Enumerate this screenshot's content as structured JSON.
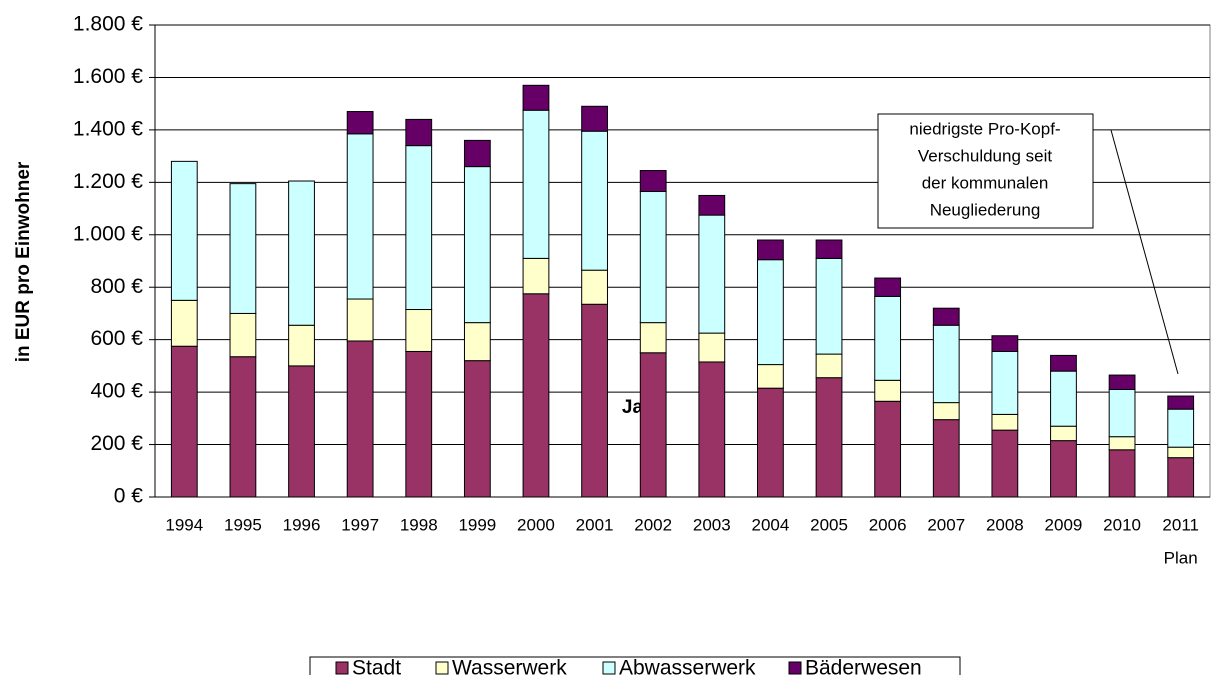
{
  "chart_data": {
    "type": "stacked_bar",
    "y_label": "in EUR pro Einwohner",
    "x_label": "Jahr",
    "categories": [
      "1994",
      "1995",
      "1996",
      "1997",
      "1998",
      "1999",
      "2000",
      "2001",
      "2002",
      "2003",
      "2004",
      "2005",
      "2006",
      "2007",
      "2008",
      "2009",
      "2010",
      "2011"
    ],
    "last_category_note": "Plan",
    "series": [
      {
        "name": "Stadt",
        "color": "#993366",
        "values": [
          575,
          535,
          500,
          595,
          555,
          520,
          775,
          735,
          550,
          515,
          415,
          455,
          365,
          295,
          255,
          215,
          180,
          150
        ]
      },
      {
        "name": "Wasserwerk",
        "color": "#ffffcc",
        "values": [
          175,
          165,
          155,
          160,
          160,
          145,
          135,
          130,
          115,
          110,
          90,
          90,
          80,
          65,
          60,
          55,
          50,
          40
        ]
      },
      {
        "name": "Abwasserwerk",
        "color": "#ccffff",
        "values": [
          530,
          495,
          550,
          630,
          625,
          595,
          565,
          530,
          500,
          450,
          400,
          365,
          320,
          295,
          240,
          210,
          180,
          145
        ]
      },
      {
        "name": "Bäderwesen",
        "color": "#660066",
        "values": [
          0,
          0,
          0,
          85,
          100,
          100,
          95,
          95,
          80,
          75,
          75,
          70,
          70,
          65,
          60,
          60,
          55,
          50
        ]
      }
    ],
    "ylim": [
      0,
      1800
    ],
    "yticks": [
      {
        "value": 0,
        "label": "0 €"
      },
      {
        "value": 200,
        "label": "200 €"
      },
      {
        "value": 400,
        "label": "400 €"
      },
      {
        "value": 600,
        "label": "600 €"
      },
      {
        "value": 800,
        "label": "800 €"
      },
      {
        "value": 1000,
        "label": "1.000 €"
      },
      {
        "value": 1200,
        "label": "1.200 €"
      },
      {
        "value": 1400,
        "label": "1.400 €"
      },
      {
        "value": 1600,
        "label": "1.600 €"
      },
      {
        "value": 1800,
        "label": "1.800 €"
      }
    ],
    "grid": true,
    "annotation": [
      "niedrigste Pro-Kopf-",
      "Verschuldung seit",
      "der kommunalen",
      "Neugliederung"
    ]
  }
}
